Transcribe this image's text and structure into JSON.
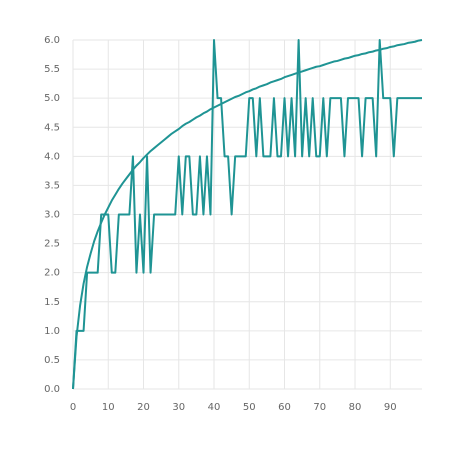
{
  "chart_data": {
    "type": "line",
    "x": [
      0,
      1,
      2,
      3,
      4,
      5,
      6,
      7,
      8,
      9,
      10,
      11,
      12,
      13,
      14,
      15,
      16,
      17,
      18,
      19,
      20,
      21,
      22,
      23,
      24,
      25,
      26,
      27,
      28,
      29,
      30,
      31,
      32,
      33,
      34,
      35,
      36,
      37,
      38,
      39,
      40,
      41,
      42,
      43,
      44,
      45,
      46,
      47,
      48,
      49,
      50,
      51,
      52,
      53,
      54,
      55,
      56,
      57,
      58,
      59,
      60,
      61,
      62,
      63,
      64,
      65,
      66,
      67,
      68,
      69,
      70,
      71,
      72,
      73,
      74,
      75,
      76,
      77,
      78,
      79,
      80,
      81,
      82,
      83,
      84,
      85,
      86,
      87,
      88,
      89,
      90,
      91,
      92,
      93,
      94,
      95,
      96,
      97,
      98,
      99
    ],
    "series": [
      {
        "color": "#1f9494",
        "values": [
          0,
          1,
          1,
          1,
          2,
          2,
          2,
          2,
          3,
          3,
          3,
          2,
          2,
          3,
          3,
          3,
          3,
          4,
          2,
          3,
          2,
          4,
          2,
          3,
          3,
          3,
          3,
          3,
          3,
          3,
          4,
          3,
          4,
          4,
          3,
          3,
          4,
          3,
          4,
          3,
          6,
          5,
          5,
          4,
          4,
          3,
          4,
          4,
          4,
          4,
          5,
          5,
          4,
          5,
          4,
          4,
          4,
          5,
          4,
          4,
          5,
          4,
          5,
          4,
          6,
          4,
          5,
          4,
          5,
          4,
          4,
          5,
          4,
          5,
          5,
          5,
          5,
          4,
          5,
          5,
          5,
          5,
          4,
          5,
          5,
          5,
          4,
          6,
          5,
          5,
          5,
          4,
          5,
          5,
          5,
          5,
          5,
          5,
          5,
          5
        ]
      },
      {
        "color": "#1f9494",
        "values": [
          0,
          0.9,
          1.43,
          1.81,
          2.1,
          2.33,
          2.54,
          2.71,
          2.86,
          3.0,
          3.12,
          3.24,
          3.34,
          3.44,
          3.53,
          3.61,
          3.69,
          3.77,
          3.84,
          3.9,
          3.97,
          4.03,
          4.09,
          4.14,
          4.19,
          4.24,
          4.29,
          4.34,
          4.39,
          4.43,
          4.47,
          4.52,
          4.56,
          4.59,
          4.63,
          4.67,
          4.7,
          4.74,
          4.77,
          4.81,
          4.84,
          4.87,
          4.9,
          4.93,
          4.96,
          4.99,
          5.02,
          5.04,
          5.07,
          5.1,
          5.12,
          5.15,
          5.17,
          5.2,
          5.22,
          5.24,
          5.27,
          5.29,
          5.31,
          5.33,
          5.36,
          5.38,
          5.4,
          5.42,
          5.44,
          5.46,
          5.48,
          5.5,
          5.52,
          5.54,
          5.55,
          5.57,
          5.59,
          5.61,
          5.63,
          5.64,
          5.66,
          5.68,
          5.69,
          5.71,
          5.73,
          5.74,
          5.76,
          5.77,
          5.79,
          5.8,
          5.82,
          5.83,
          5.85,
          5.86,
          5.88,
          5.89,
          5.91,
          5.92,
          5.93,
          5.95,
          5.96,
          5.97,
          5.99,
          6.0
        ]
      }
    ],
    "xlim": [
      0,
      99
    ],
    "xticks": [
      0,
      10,
      20,
      30,
      40,
      50,
      60,
      70,
      80,
      90
    ],
    "ylim": [
      0,
      6
    ],
    "yticks": [
      {
        "value": 0,
        "label": "0.0"
      },
      {
        "value": 0.5,
        "label": "0.5"
      },
      {
        "value": 1,
        "label": "1.0"
      },
      {
        "value": 1.5,
        "label": "1.5"
      },
      {
        "value": 2,
        "label": "2.0"
      },
      {
        "value": 2.5,
        "label": "2.5"
      },
      {
        "value": 3,
        "label": "3.0"
      },
      {
        "value": 3.5,
        "label": "3.5"
      },
      {
        "value": 4,
        "label": "4.0"
      },
      {
        "value": 4.5,
        "label": "4.5"
      },
      {
        "value": 5,
        "label": "5.0"
      },
      {
        "value": 5.5,
        "label": "5.5"
      },
      {
        "value": 6,
        "label": "6.0"
      }
    ],
    "grid": true
  }
}
